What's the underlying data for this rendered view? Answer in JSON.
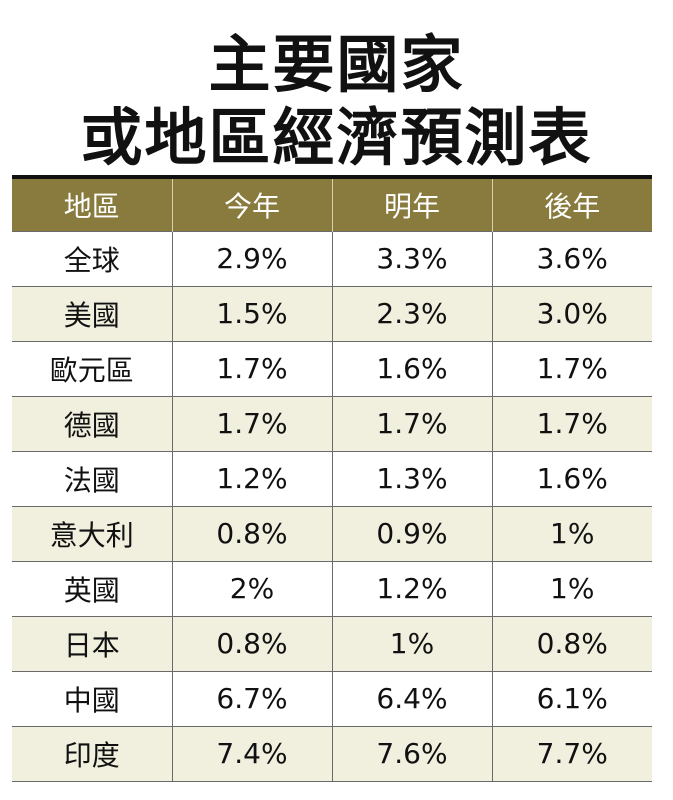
{
  "title_line1": "主要國家",
  "title_line2": "或地區經濟預測表",
  "chart_data": {
    "type": "table",
    "columns": [
      "地區",
      "今年",
      "明年",
      "後年"
    ],
    "rows": [
      [
        "全球",
        "2.9%",
        "3.3%",
        "3.6%"
      ],
      [
        "美國",
        "1.5%",
        "2.3%",
        "3.0%"
      ],
      [
        "歐元區",
        "1.7%",
        "1.6%",
        "1.7%"
      ],
      [
        "德國",
        "1.7%",
        "1.7%",
        "1.7%"
      ],
      [
        "法國",
        "1.2%",
        "1.3%",
        "1.6%"
      ],
      [
        "意大利",
        "0.8%",
        "0.9%",
        "1%"
      ],
      [
        "英國",
        "2%",
        "1.2%",
        "1%"
      ],
      [
        "日本",
        "0.8%",
        "1%",
        "0.8%"
      ],
      [
        "中國",
        "6.7%",
        "6.4%",
        "6.1%"
      ],
      [
        "印度",
        "7.4%",
        "7.6%",
        "7.7%"
      ]
    ]
  },
  "colors": {
    "header_bg": "#897a3e",
    "header_text": "#ffffff",
    "alt_row_bg": "#f1efde",
    "grid": "#6a6a6a"
  }
}
